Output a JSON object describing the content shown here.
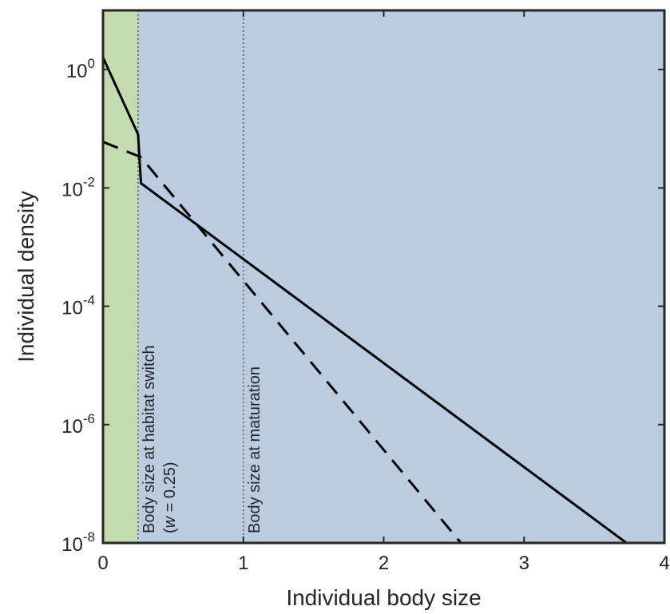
{
  "chart_data": {
    "type": "line",
    "xlabel": "Individual body size",
    "ylabel": "Individual density",
    "xlim": [
      0,
      4
    ],
    "ylim": [
      1e-08,
      10
    ],
    "y_scale": "log",
    "x_ticks": [
      "0",
      "1",
      "2",
      "3",
      "4"
    ],
    "y_ticks": [
      {
        "base": "10",
        "exp": "0"
      },
      {
        "base": "10",
        "exp": "-2"
      },
      {
        "base": "10",
        "exp": "-4"
      },
      {
        "base": "10",
        "exp": "-6"
      },
      {
        "base": "10",
        "exp": "-8"
      }
    ],
    "grid": false,
    "legend": "none",
    "regions": [
      {
        "x": [
          0,
          0.25
        ],
        "color": "#c3dcaf"
      },
      {
        "x": [
          0.25,
          4
        ],
        "color": "#bccce0"
      }
    ],
    "reference_lines": [
      {
        "x": 0.25,
        "label": "Body size at habitat switch",
        "sublabel_italic": "w",
        "sublabel_rest": " = 0.25)",
        "sublabel_open": "("
      },
      {
        "x": 1.0,
        "label": "Body size at maturation"
      }
    ],
    "series": [
      {
        "style": "solid",
        "points": [
          [
            0,
            1.6
          ],
          [
            0.25,
            0.08
          ],
          [
            0.27,
            0.012
          ],
          [
            3.73,
            1e-08
          ]
        ]
      },
      {
        "style": "dashed",
        "points": [
          [
            0,
            0.06
          ],
          [
            0.27,
            0.033
          ],
          [
            2.55,
            1e-08
          ]
        ]
      }
    ],
    "colors": {
      "line": "#000000",
      "axis": "#262626"
    }
  }
}
